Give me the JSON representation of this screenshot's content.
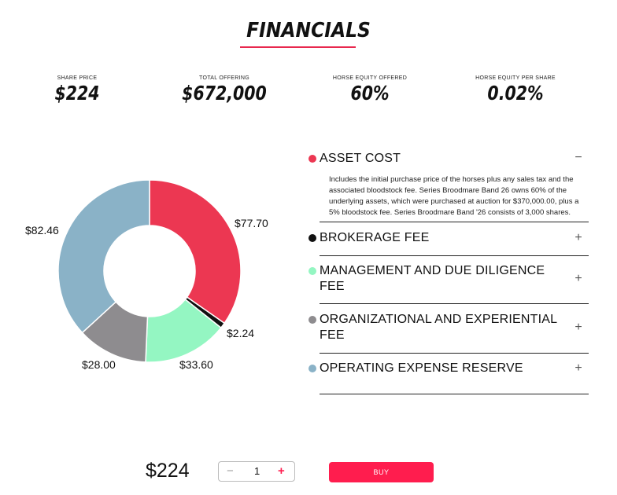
{
  "header": {
    "title": "FINANCIALS"
  },
  "stats": [
    {
      "label": "SHARE PRICE",
      "value": "$224"
    },
    {
      "label": "TOTAL OFFERING",
      "value": "$672,000"
    },
    {
      "label": "HORSE EQUITY OFFERED",
      "value": "60%"
    },
    {
      "label": "HORSE EQUITY PER SHARE",
      "value": "0.02%"
    }
  ],
  "chart_data": {
    "type": "pie",
    "donut": true,
    "slices": [
      {
        "name": "ASSET COST",
        "value": 77.7,
        "label": "$77.70",
        "color": "#ec3752"
      },
      {
        "name": "BROKERAGE FEE",
        "value": 2.24,
        "label": "$2.24",
        "color": "#111111"
      },
      {
        "name": "MANAGEMENT AND DUE DILIGENCE FEE",
        "value": 33.6,
        "label": "$33.60",
        "color": "#94f6c2"
      },
      {
        "name": "ORGANIZATIONAL AND EXPERIENTIAL FEE",
        "value": 28.0,
        "label": "$28.00",
        "color": "#8e8c8f"
      },
      {
        "name": "OPERATING EXPENSE RESERVE",
        "value": 82.46,
        "label": "$82.46",
        "color": "#8ab2c7"
      }
    ]
  },
  "accordion": {
    "items": [
      {
        "title": "ASSET COST",
        "color": "#ec3752",
        "expanded": true,
        "toggle": "−",
        "body": "Includes the initial purchase price of the horses plus any sales tax and the associated bloodstock fee. Series Broodmare Band 26 owns 60% of the underlying assets, which were purchased at auction for $370,000.00, plus a 5% bloodstock fee. Series Broodmare Band '26 consists of 3,000 shares."
      },
      {
        "title": "BROKERAGE FEE",
        "color": "#111111",
        "expanded": false,
        "toggle": "+"
      },
      {
        "title": "MANAGEMENT AND DUE DILIGENCE FEE",
        "color": "#94f6c2",
        "expanded": false,
        "toggle": "+"
      },
      {
        "title": "ORGANIZATIONAL AND EXPERIENTIAL FEE",
        "color": "#8e8c8f",
        "expanded": false,
        "toggle": "+"
      },
      {
        "title": "OPERATING EXPENSE RESERVE",
        "color": "#8ab2c7",
        "expanded": false,
        "toggle": "+"
      }
    ]
  },
  "purchase": {
    "price": "$224",
    "minus": "−",
    "quantity": "1",
    "plus": "+",
    "buy_label": "BUY",
    "plus_color": "#ff1d4e"
  }
}
